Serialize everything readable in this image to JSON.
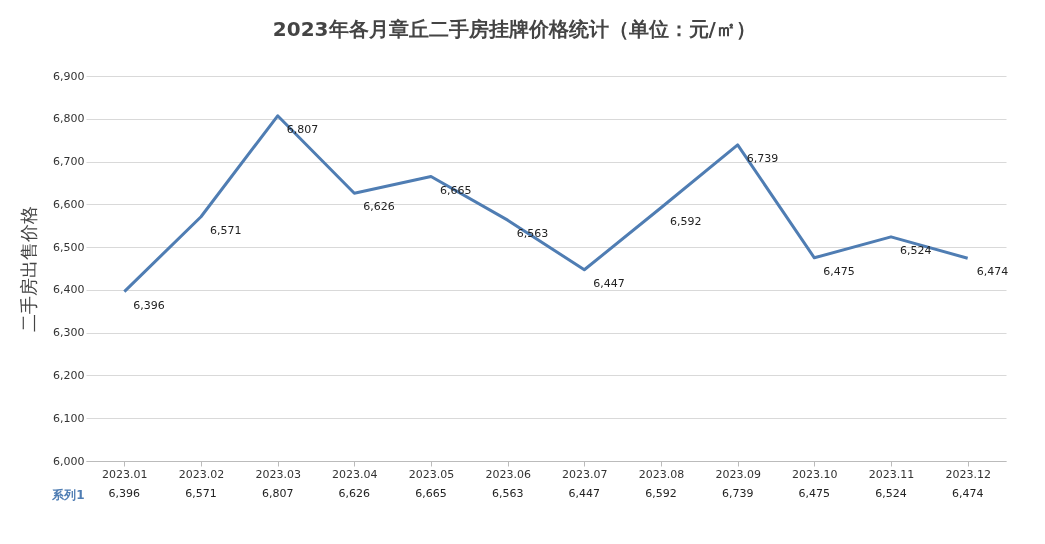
{
  "chart_data": {
    "type": "line",
    "title": "2023年各月章丘二手房挂牌价格统计（单位：元/㎡）",
    "ylabel": "二手房出售价格",
    "categories": [
      "2023.01",
      "2023.02",
      "2023.03",
      "2023.04",
      "2023.05",
      "2023.06",
      "2023.07",
      "2023.08",
      "2023.09",
      "2023.10",
      "2023.11",
      "2023.12"
    ],
    "series": [
      {
        "name": "系列1",
        "color": "#4f7db3",
        "values": [
          6396,
          6571,
          6807,
          6626,
          6665,
          6563,
          6447,
          6592,
          6739,
          6475,
          6524,
          6474
        ],
        "value_labels": [
          "6,396",
          "6,571",
          "6,807",
          "6,626",
          "6,665",
          "6,563",
          "6,447",
          "6,592",
          "6,739",
          "6,475",
          "6,524",
          "6,474"
        ]
      }
    ],
    "ylim": [
      6000,
      6900
    ],
    "yticks": [
      {
        "value": 6000,
        "label": "6,000"
      },
      {
        "value": 6100,
        "label": "6,100"
      },
      {
        "value": 6200,
        "label": "6,200"
      },
      {
        "value": 6300,
        "label": "6,300"
      },
      {
        "value": 6400,
        "label": "6,400"
      },
      {
        "value": 6500,
        "label": "6,500"
      },
      {
        "value": 6600,
        "label": "6,600"
      },
      {
        "value": 6700,
        "label": "6,700"
      },
      {
        "value": 6800,
        "label": "6,800"
      },
      {
        "value": 6900,
        "label": "6,900"
      }
    ],
    "grid": "y"
  }
}
